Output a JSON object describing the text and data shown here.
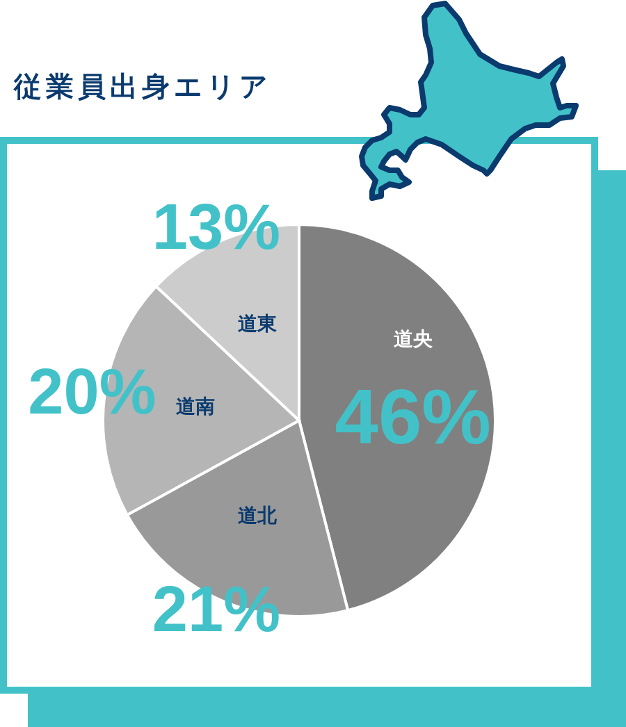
{
  "chart_data": {
    "type": "pie",
    "title": "従業員出身エリア",
    "categories": [
      "道央",
      "道北",
      "道南",
      "道東"
    ],
    "values": [
      46,
      21,
      20,
      13
    ],
    "colors": [
      "#808080",
      "#999999",
      "#b5b5b5",
      "#cccccc"
    ],
    "value_labels": [
      "46%",
      "21%",
      "20%",
      "13%"
    ]
  }
}
